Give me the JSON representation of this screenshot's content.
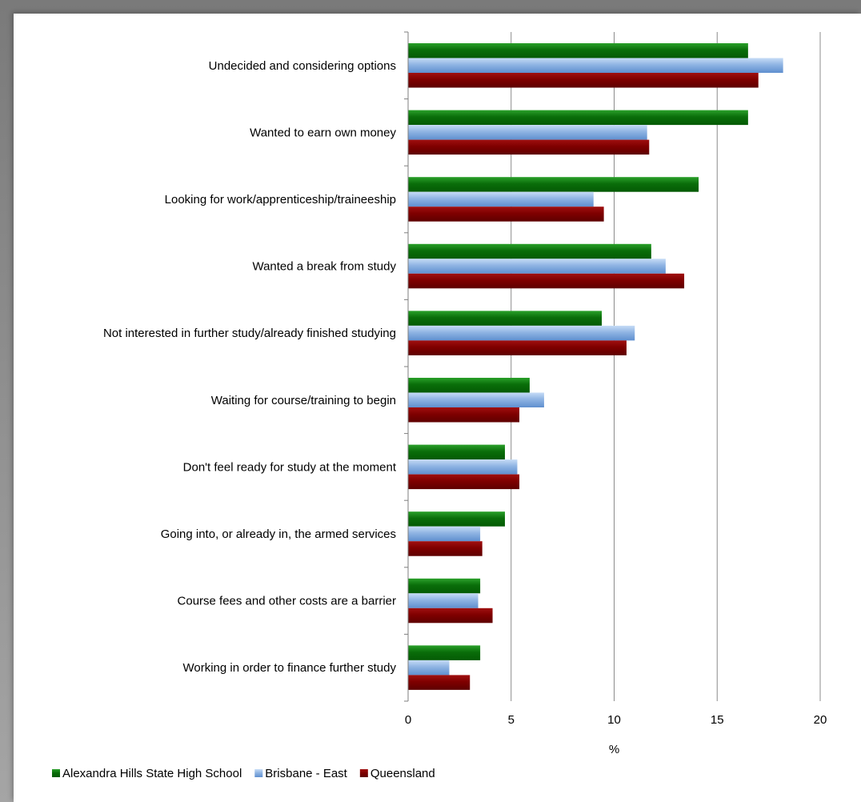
{
  "chart_data": {
    "type": "bar",
    "orientation": "horizontal",
    "categories": [
      "Undecided and considering options",
      "Wanted to earn own money",
      "Looking for work/apprenticeship/traineeship",
      "Wanted a break from study",
      "Not interested in further study/already finished studying",
      "Waiting for course/training to begin",
      "Don't feel ready for study at the moment",
      "Going into, or already in, the armed services",
      "Course fees and other costs are a barrier",
      "Working in order to finance further study"
    ],
    "series": [
      {
        "name": "Alexandra Hills State High School",
        "color": "#0b7a0b",
        "values": [
          16.5,
          16.5,
          14.1,
          11.8,
          9.4,
          5.9,
          4.7,
          4.7,
          3.5,
          3.5
        ]
      },
      {
        "name": "Brisbane - East",
        "color": "#8fb4e3",
        "values": [
          18.2,
          11.6,
          9.0,
          12.5,
          11.0,
          6.6,
          5.3,
          3.5,
          3.4,
          2.0
        ]
      },
      {
        "name": "Queensland",
        "color": "#7f0000",
        "values": [
          17.0,
          11.7,
          9.5,
          13.4,
          10.6,
          5.4,
          5.4,
          3.6,
          4.1,
          3.0
        ]
      }
    ],
    "xlabel": "%",
    "xlim": [
      0,
      20
    ],
    "xticks": [
      "0",
      "5",
      "10",
      "15",
      "20"
    ],
    "grid": true,
    "legend": "bottom-left"
  }
}
